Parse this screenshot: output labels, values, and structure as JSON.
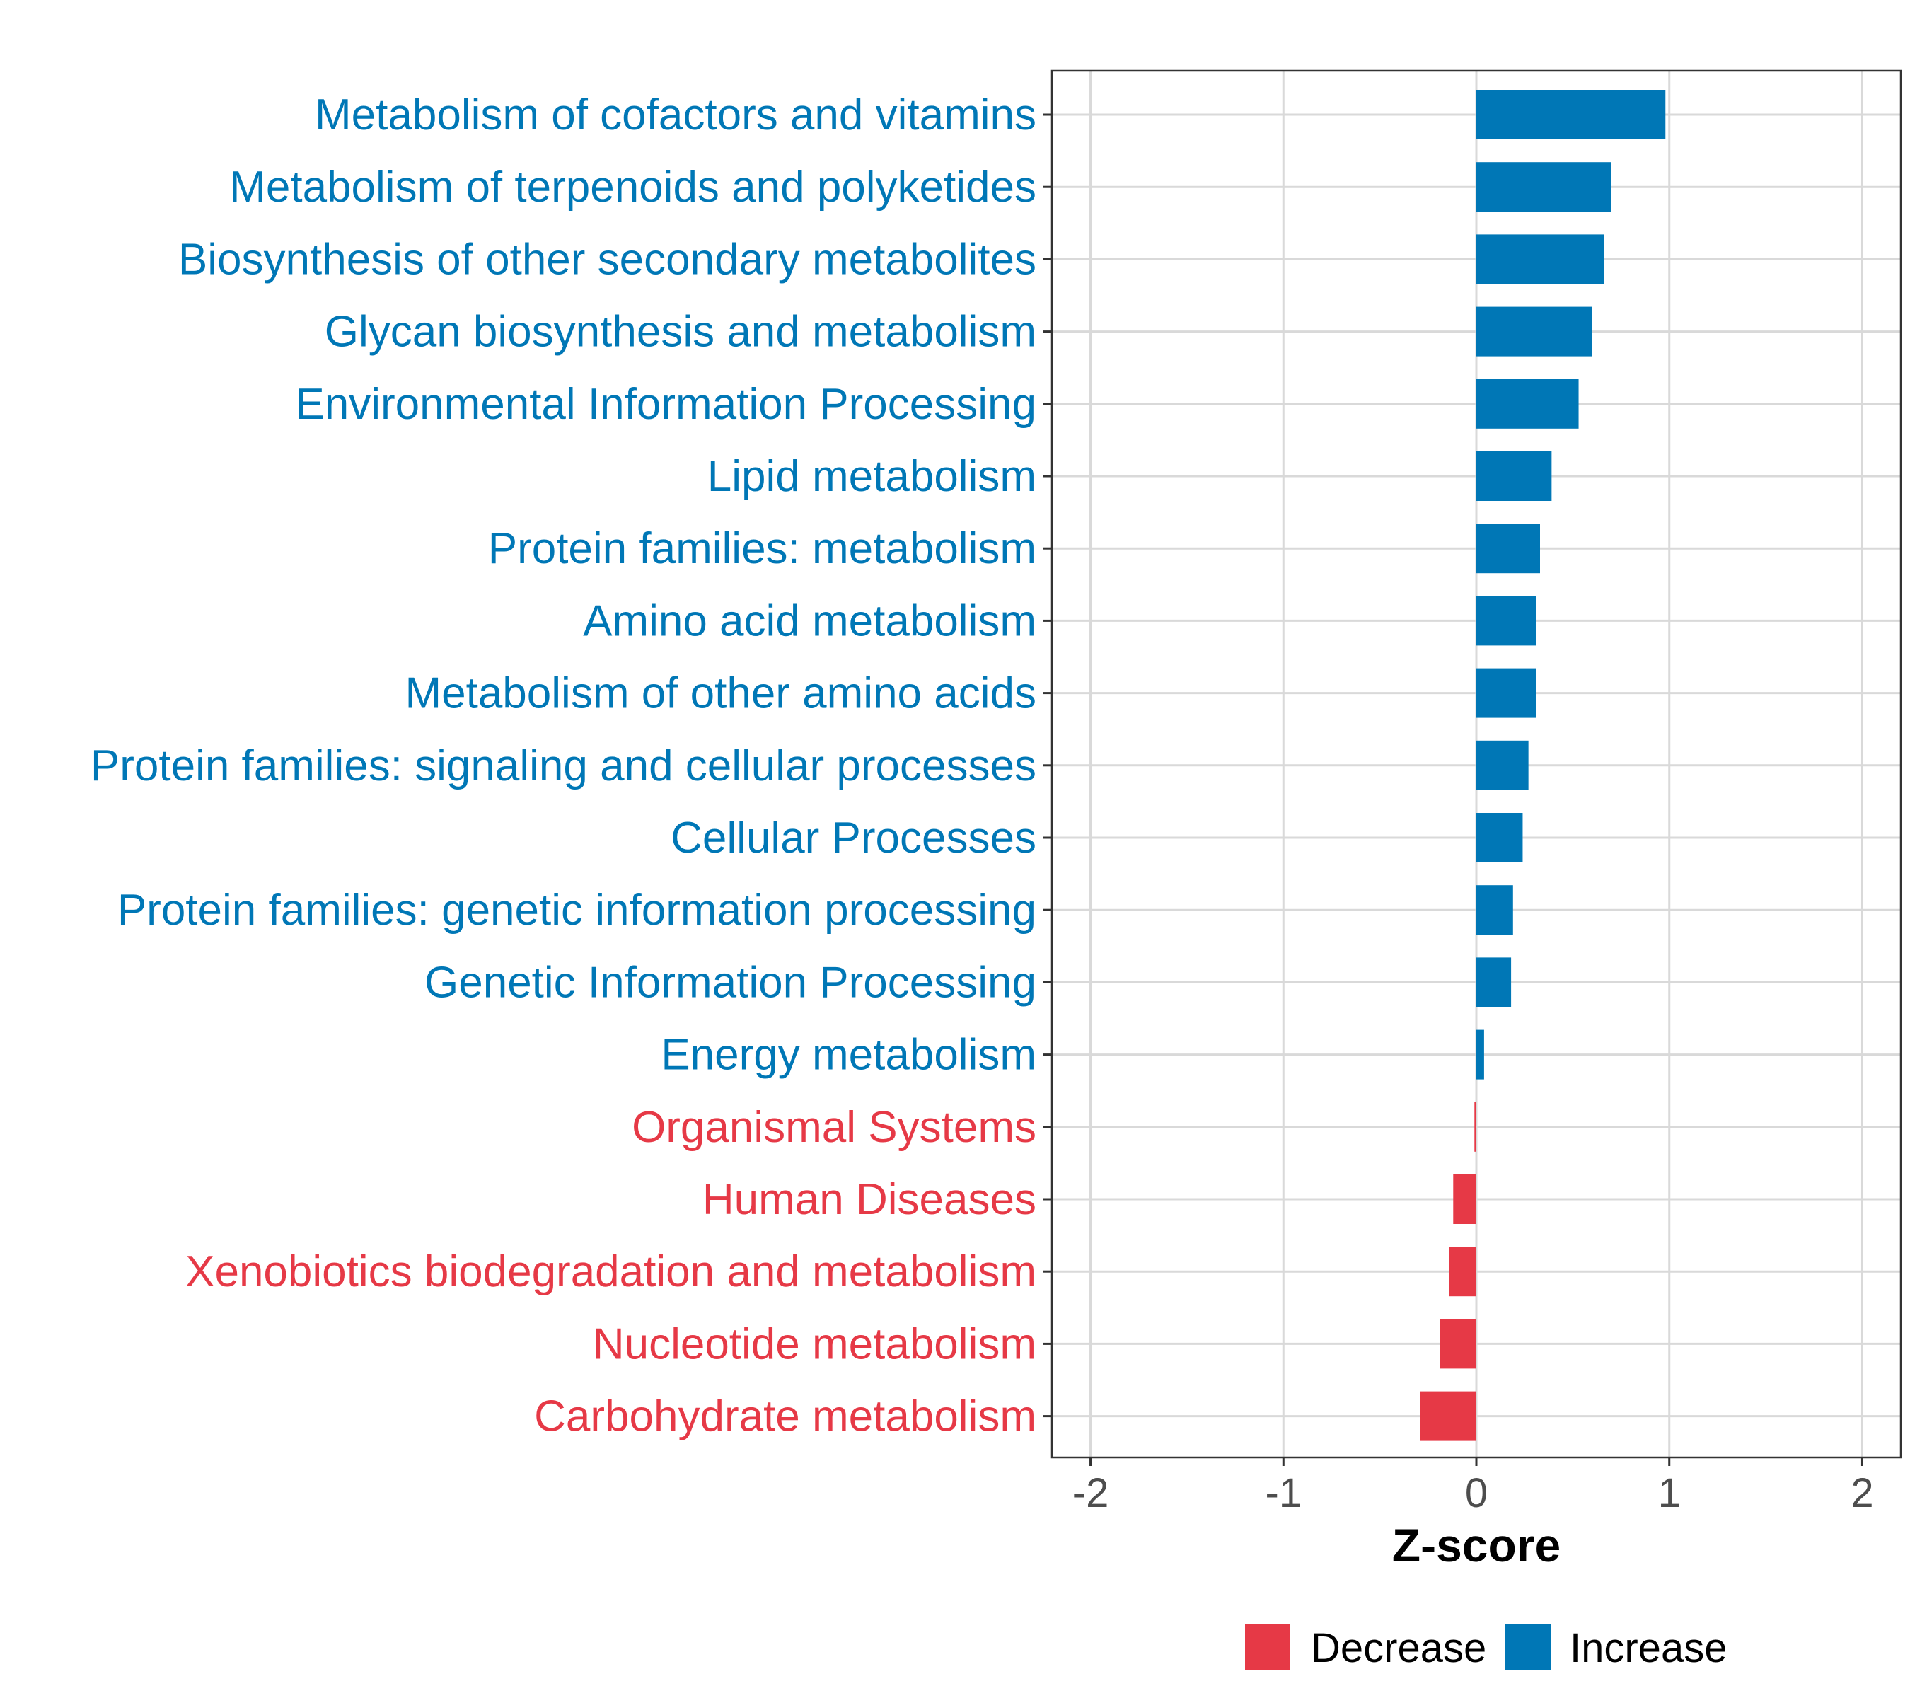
{
  "chart_data": {
    "type": "bar",
    "orientation": "horizontal",
    "title": "",
    "xlabel": "Z-score",
    "ylabel": "",
    "xlim": [
      -2.2,
      2.2
    ],
    "x_ticks": [
      -2,
      -1,
      0,
      1,
      2
    ],
    "x_tick_labels": [
      "-2",
      "-1",
      "0",
      "1",
      "2"
    ],
    "grid": true,
    "legend_position": "bottom",
    "legend": [
      {
        "key": "Decrease",
        "label": "Decrease",
        "color": "#e63946"
      },
      {
        "key": "Increase",
        "label": "Increase",
        "color": "#0077b6"
      }
    ],
    "categories": [
      "Metabolism of cofactors and vitamins",
      "Metabolism of terpenoids and polyketides",
      "Biosynthesis of other secondary metabolites",
      "Glycan biosynthesis and metabolism",
      "Environmental Information Processing",
      "Lipid metabolism",
      "Protein families: metabolism",
      "Amino acid metabolism",
      "Metabolism of other amino acids",
      "Protein families: signaling and cellular processes",
      "Cellular Processes",
      "Protein families: genetic information processing",
      "Genetic Information Processing",
      "Energy metabolism",
      "Organismal Systems",
      "Human Diseases",
      "Xenobiotics biodegradation and metabolism",
      "Nucleotide metabolism",
      "Carbohydrate metabolism"
    ],
    "values": [
      0.98,
      0.7,
      0.66,
      0.6,
      0.53,
      0.39,
      0.33,
      0.31,
      0.31,
      0.27,
      0.24,
      0.19,
      0.18,
      0.04,
      -0.01,
      -0.12,
      -0.14,
      -0.19,
      -0.29
    ],
    "groups": [
      "Increase",
      "Increase",
      "Increase",
      "Increase",
      "Increase",
      "Increase",
      "Increase",
      "Increase",
      "Increase",
      "Increase",
      "Increase",
      "Increase",
      "Increase",
      "Increase",
      "Decrease",
      "Decrease",
      "Decrease",
      "Decrease",
      "Decrease"
    ]
  }
}
